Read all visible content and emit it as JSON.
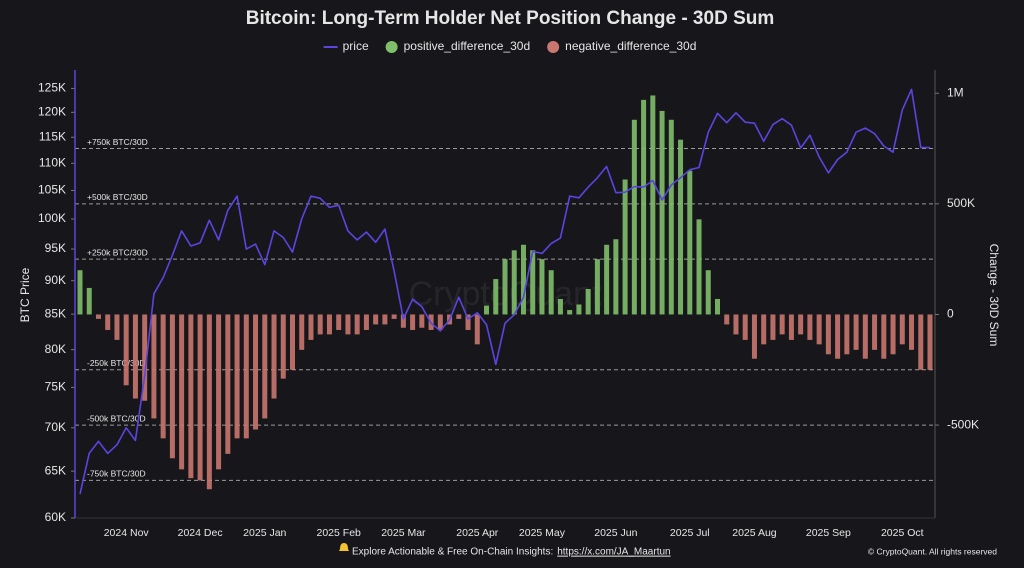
{
  "chart_data": {
    "type": "bar-line",
    "title": "Bitcoin: Long-Term Holder Net Position Change - 30D Sum",
    "y_label": "BTC Price",
    "y2_label": "Change - 30D Sum",
    "watermark": "CryptoQuant",
    "y_scale": "log",
    "ylim": [
      60000,
      129000
    ],
    "yticks": [
      {
        "value": 60000,
        "label": "60K"
      },
      {
        "value": 65000,
        "label": "65K"
      },
      {
        "value": 70000,
        "label": "70K"
      },
      {
        "value": 75000,
        "label": "75K"
      },
      {
        "value": 80000,
        "label": "80K"
      },
      {
        "value": 85000,
        "label": "85K"
      },
      {
        "value": 90000,
        "label": "90K"
      },
      {
        "value": 95000,
        "label": "95K"
      },
      {
        "value": 100000,
        "label": "100K"
      },
      {
        "value": 105000,
        "label": "105K"
      },
      {
        "value": 110000,
        "label": "110K"
      },
      {
        "value": 115000,
        "label": "115K"
      },
      {
        "value": 120000,
        "label": "120K"
      },
      {
        "value": 125000,
        "label": "125K"
      }
    ],
    "y2lim": [
      -920000,
      1105000
    ],
    "y2ticks": [
      {
        "value": 1000000,
        "label": "1M"
      },
      {
        "value": 500000,
        "label": "500K"
      },
      0,
      {
        "value": -500000,
        "label": "-500K"
      }
    ],
    "reference_lines": [
      {
        "value": 750000,
        "label": "+750k BTC/30D"
      },
      {
        "value": 500000,
        "label": "+500k BTC/30D"
      },
      {
        "value": 250000,
        "label": "+250k BTC/30D"
      },
      {
        "value": -250000,
        "label": "-250k BTC/30D"
      },
      {
        "value": -500000,
        "label": "-500k BTC/30D"
      },
      {
        "value": -750000,
        "label": "-750k BTC/30D"
      }
    ],
    "categories": [
      null,
      null,
      null,
      null,
      null,
      "2024 Nov",
      null,
      null,
      null,
      null,
      null,
      null,
      null,
      "2024 Dec",
      null,
      null,
      null,
      null,
      null,
      null,
      "2025 Jan",
      null,
      null,
      null,
      null,
      null,
      null,
      null,
      "2025 Feb",
      null,
      null,
      null,
      null,
      null,
      null,
      "2025 Mar",
      null,
      null,
      null,
      null,
      null,
      null,
      null,
      "2025 Apr",
      null,
      null,
      null,
      null,
      null,
      null,
      "2025 May",
      null,
      null,
      null,
      null,
      null,
      null,
      null,
      "2025 Jun",
      null,
      null,
      null,
      null,
      null,
      null,
      null,
      "2025 Jul",
      null,
      null,
      null,
      null,
      null,
      null,
      "2025 Aug",
      null,
      null,
      null,
      null,
      null,
      null,
      null,
      "2025 Sep",
      null,
      null,
      null,
      null,
      null,
      null,
      null,
      "2025 Oct",
      null,
      null,
      null
    ],
    "series": [
      {
        "name": "price",
        "type": "line",
        "axis": "y",
        "color": "#5a45e0",
        "values": [
          62500,
          67000,
          68400,
          67000,
          68000,
          70000,
          68500,
          76500,
          88000,
          90500,
          94000,
          98000,
          95500,
          96000,
          99800,
          96500,
          101500,
          104000,
          95000,
          95800,
          92500,
          98000,
          96900,
          94500,
          100000,
          104000,
          103600,
          102000,
          102400,
          98000,
          96500,
          97800,
          96100,
          98300,
          91500,
          84300,
          87200,
          86100,
          83700,
          82600,
          84200,
          87500,
          84300,
          85200,
          83500,
          78000,
          83700,
          84900,
          87500,
          94600,
          94300,
          95900,
          96800,
          104000,
          103700,
          105600,
          107300,
          109400,
          104600,
          104700,
          105700,
          105600,
          106800,
          103300,
          106000,
          107300,
          108800,
          109200,
          116000,
          119800,
          117900,
          119900,
          118000,
          117800,
          114200,
          117500,
          118700,
          117400,
          112900,
          115400,
          111200,
          108200,
          110700,
          112100,
          116000,
          116800,
          115700,
          113300,
          112100,
          120500,
          124800,
          113000,
          113000
        ]
      },
      {
        "name": "positive_difference_30d",
        "type": "bar",
        "axis": "y2",
        "color": "#7fbf6a",
        "values": [
          200000,
          120000,
          null,
          null,
          null,
          null,
          null,
          null,
          null,
          null,
          null,
          null,
          null,
          null,
          null,
          null,
          null,
          null,
          null,
          null,
          null,
          null,
          null,
          null,
          null,
          null,
          null,
          null,
          null,
          null,
          null,
          null,
          null,
          null,
          null,
          null,
          null,
          null,
          null,
          null,
          null,
          null,
          null,
          null,
          40000,
          160000,
          250000,
          290000,
          315000,
          290000,
          250000,
          200000,
          70000,
          20000,
          45000,
          115000,
          250000,
          315000,
          340000,
          610000,
          880000,
          970000,
          990000,
          920000,
          880000,
          790000,
          650000,
          430000,
          200000,
          70000,
          null,
          null,
          null,
          null,
          null,
          null,
          null,
          null,
          null,
          null,
          null,
          null,
          null,
          null,
          null,
          null,
          null,
          null,
          null,
          null,
          null,
          null,
          null
        ]
      },
      {
        "name": "negative_difference_30d",
        "type": "bar",
        "axis": "y2",
        "color": "#c9776f",
        "values": [
          null,
          null,
          -20000,
          -70000,
          -115000,
          -320000,
          -380000,
          -390000,
          -470000,
          -560000,
          -650000,
          -700000,
          -740000,
          -750000,
          -790000,
          -700000,
          -630000,
          -560000,
          -560000,
          -520000,
          -470000,
          -380000,
          -290000,
          -250000,
          -160000,
          -115000,
          -90000,
          -90000,
          -70000,
          -90000,
          -90000,
          -70000,
          -45000,
          -45000,
          -20000,
          -60000,
          -70000,
          -60000,
          -70000,
          -70000,
          -45000,
          -20000,
          -70000,
          -135000,
          null,
          null,
          null,
          null,
          null,
          null,
          null,
          null,
          null,
          null,
          null,
          null,
          null,
          null,
          null,
          null,
          null,
          null,
          null,
          null,
          null,
          null,
          null,
          null,
          null,
          null,
          -45000,
          -90000,
          -115000,
          -200000,
          -135000,
          -115000,
          -90000,
          -115000,
          -90000,
          -115000,
          -135000,
          -180000,
          -200000,
          -180000,
          -160000,
          -200000,
          -160000,
          -200000,
          -180000,
          -135000,
          -160000,
          -250000,
          -250000
        ]
      }
    ]
  },
  "footer": {
    "text": "Explore Actionable & Free On-Chain Insights:",
    "link": "https://x.com/JA_Maartun",
    "copyright": "© CryptoQuant. All rights reserved"
  }
}
